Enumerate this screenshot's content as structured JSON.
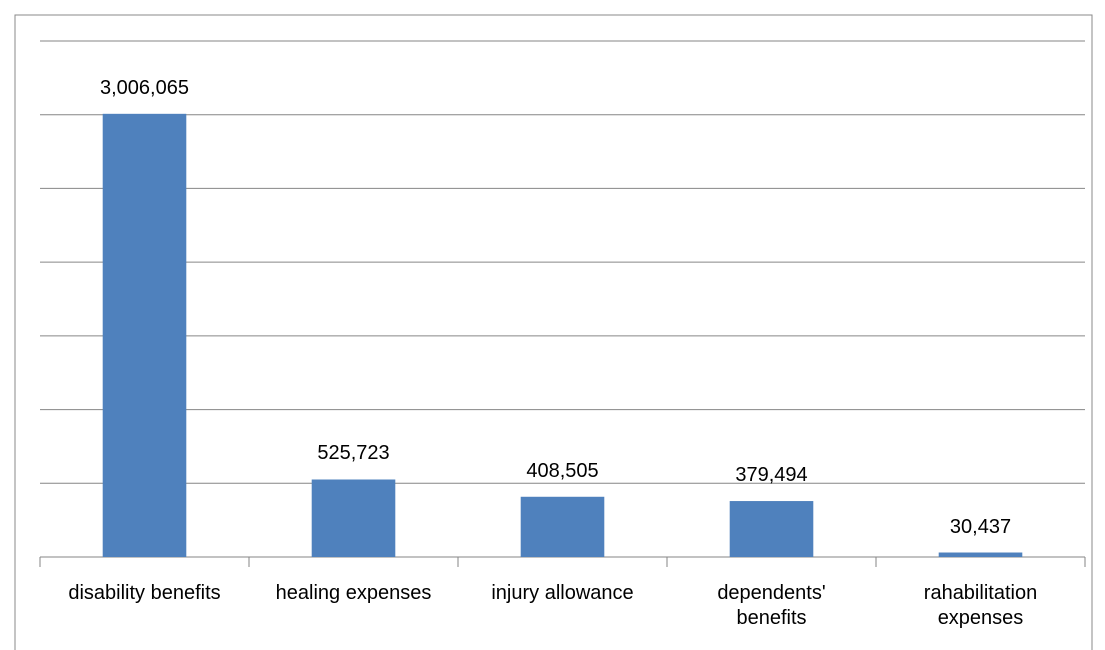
{
  "chart_data": {
    "type": "bar",
    "categories": [
      "disability benefits",
      "healing expenses",
      "injury allowance",
      "dependents' benefits",
      "rahabilitation expenses"
    ],
    "values": [
      3006065,
      525723,
      408505,
      379494,
      30437
    ],
    "value_labels": [
      "3,006,065",
      "525,723",
      "408,505",
      "379,494",
      "30,437"
    ],
    "color": "#4f81bd",
    "ylim": [
      0,
      3500000
    ],
    "yticks": [
      0,
      500000,
      1000000,
      1500000,
      2000000,
      2500000,
      3000000,
      3500000
    ],
    "grid": true
  }
}
